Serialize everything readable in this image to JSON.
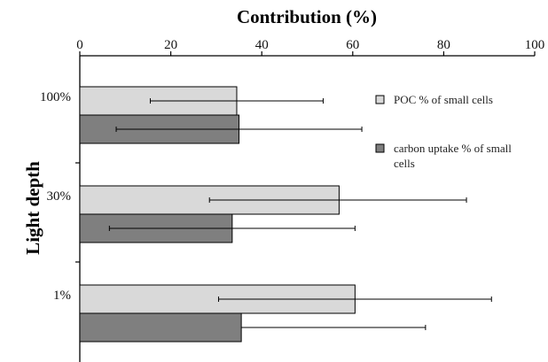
{
  "chart_data": {
    "type": "bar",
    "orientation": "horizontal",
    "xlabel": "Contribution (%)",
    "ylabel": "Light depth",
    "xlim": [
      0,
      100
    ],
    "x_ticks": [
      "0",
      "20",
      "40",
      "60",
      "80",
      "100"
    ],
    "x_axis_position": "top",
    "grid": false,
    "legend_position": "right",
    "categories": [
      "100%",
      "30%",
      "1%"
    ],
    "series": [
      {
        "name": "POC % of small cells",
        "color": "#d9d9d9",
        "values": [
          34.5,
          57,
          60.5
        ],
        "error_low": [
          15.5,
          28.5,
          30.5
        ],
        "error_high": [
          53.5,
          85,
          90.5
        ]
      },
      {
        "name": "carbon uptake % of small cells",
        "color": "#7f7f7f",
        "values": [
          35,
          33.5,
          35.5
        ],
        "error_low": [
          8,
          6.5,
          null
        ],
        "error_high": [
          62,
          60.5,
          76
        ]
      }
    ]
  }
}
